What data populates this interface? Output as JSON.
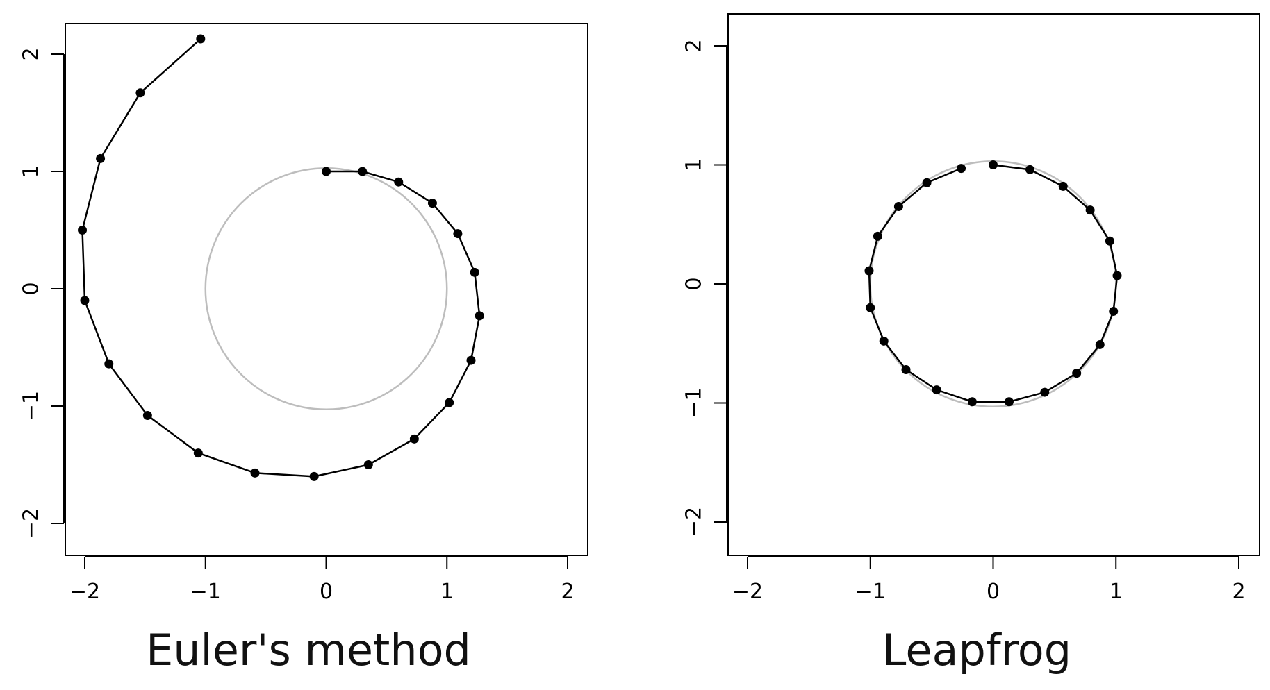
{
  "colors": {
    "trajectory": "#000000",
    "exact_circle": "#bdbdbd",
    "axes": "#000000",
    "background": "#ffffff"
  },
  "chart_data": [
    {
      "type": "line",
      "title": "Euler's method",
      "xlabel": "",
      "ylabel": "",
      "xlim": [
        -2.2,
        2.2
      ],
      "ylim": [
        -2.3,
        2.25
      ],
      "xticks": [
        -2,
        -1,
        0,
        1,
        2
      ],
      "yticks": [
        -2,
        -1,
        0,
        1,
        2
      ],
      "xtick_labels": [
        "−2",
        "−1",
        "0",
        "1",
        "2"
      ],
      "ytick_labels": [
        "−2",
        "−1",
        "0",
        "1",
        "2"
      ],
      "grid": false,
      "reference_curve": "unit-circle",
      "series": [
        {
          "x": [
            0,
            0.3,
            0.6,
            0.88,
            1.09,
            1.23,
            1.27,
            1.2,
            1.02,
            0.73,
            0.35,
            -0.1,
            -0.59,
            -1.06,
            -1.48,
            -1.8,
            -2.0,
            -2.02,
            -1.87,
            -1.54,
            -1.04
          ],
          "y": [
            1,
            1,
            0.91,
            0.73,
            0.47,
            0.14,
            -0.23,
            -0.61,
            -0.97,
            -1.28,
            -1.5,
            -1.6,
            -1.57,
            -1.4,
            -1.08,
            -0.64,
            -0.1,
            0.5,
            1.11,
            1.67,
            2.13
          ]
        }
      ]
    },
    {
      "type": "line",
      "title": "Leapfrog",
      "xlabel": "",
      "ylabel": "",
      "xlim": [
        -2.2,
        2.2
      ],
      "ylim": [
        -2.3,
        2.25
      ],
      "xticks": [
        -2,
        -1,
        0,
        1,
        2
      ],
      "yticks": [
        -2,
        -1,
        0,
        1,
        2
      ],
      "xtick_labels": [
        "−2",
        "−1",
        "0",
        "1",
        "2"
      ],
      "ytick_labels": [
        "−2",
        "−1",
        "0",
        "1",
        "2"
      ],
      "grid": false,
      "reference_curve": "unit-circle",
      "series": [
        {
          "x": [
            0,
            0.3,
            0.57,
            0.79,
            0.95,
            1.01,
            0.98,
            0.87,
            0.68,
            0.42,
            0.13,
            -0.17,
            -0.46,
            -0.71,
            -0.89,
            -1.0,
            -1.01,
            -0.94,
            -0.77,
            -0.54,
            -0.26
          ],
          "y": [
            1,
            0.96,
            0.82,
            0.62,
            0.36,
            0.07,
            -0.23,
            -0.51,
            -0.75,
            -0.91,
            -0.99,
            -0.99,
            -0.89,
            -0.72,
            -0.48,
            -0.2,
            0.11,
            0.4,
            0.65,
            0.85,
            0.97
          ]
        }
      ]
    }
  ]
}
